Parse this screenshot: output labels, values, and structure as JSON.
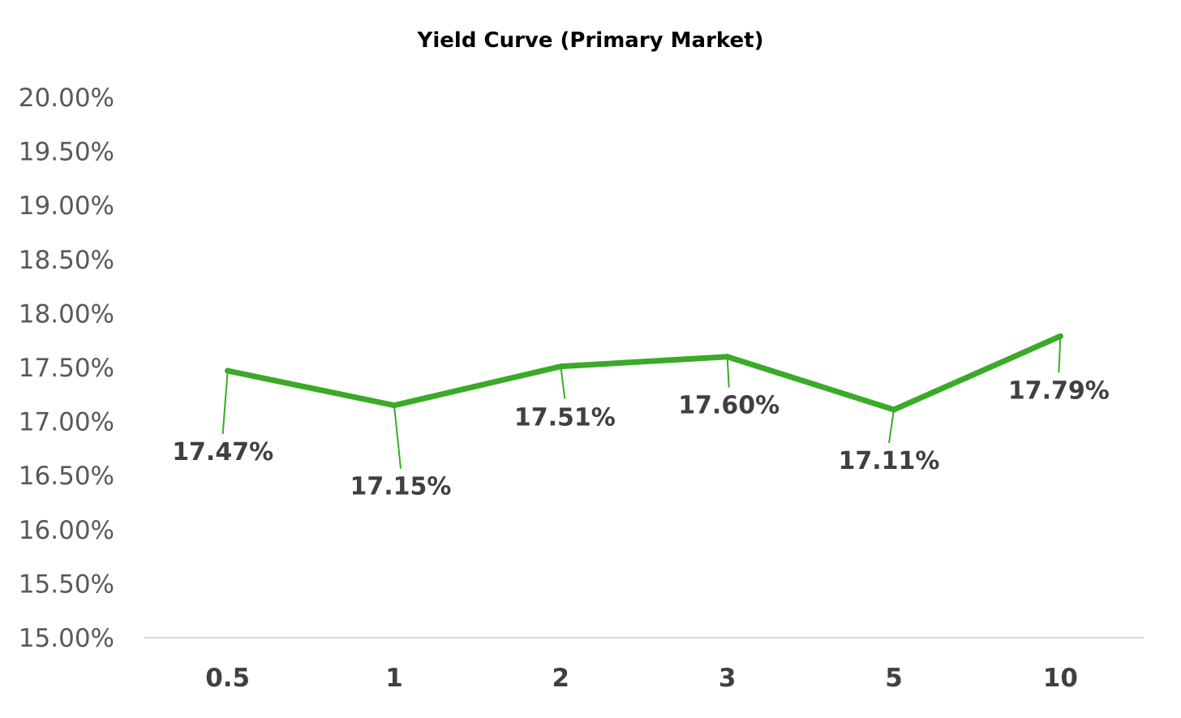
{
  "chart_data": {
    "type": "line",
    "title": "Yield Curve (Primary Market)",
    "categories": [
      "0.5",
      "1",
      "2",
      "3",
      "5",
      "10"
    ],
    "series": [
      {
        "values": [
          17.47,
          17.15,
          17.51,
          17.6,
          17.11,
          17.79
        ],
        "labels": [
          "17.47%",
          "17.15%",
          "17.51%",
          "17.60%",
          "17.11%",
          "17.79%"
        ],
        "color": "#3aaa28"
      }
    ],
    "ylim": [
      15.0,
      20.0
    ],
    "y_ticks": [
      "15.00%",
      "15.50%",
      "16.00%",
      "16.50%",
      "17.00%",
      "17.50%",
      "18.00%",
      "18.50%",
      "19.00%",
      "19.50%",
      "20.00%"
    ],
    "xlabel": "",
    "ylabel": "",
    "grid": false,
    "legend": "none",
    "axis_color": "#d9d9d9"
  }
}
